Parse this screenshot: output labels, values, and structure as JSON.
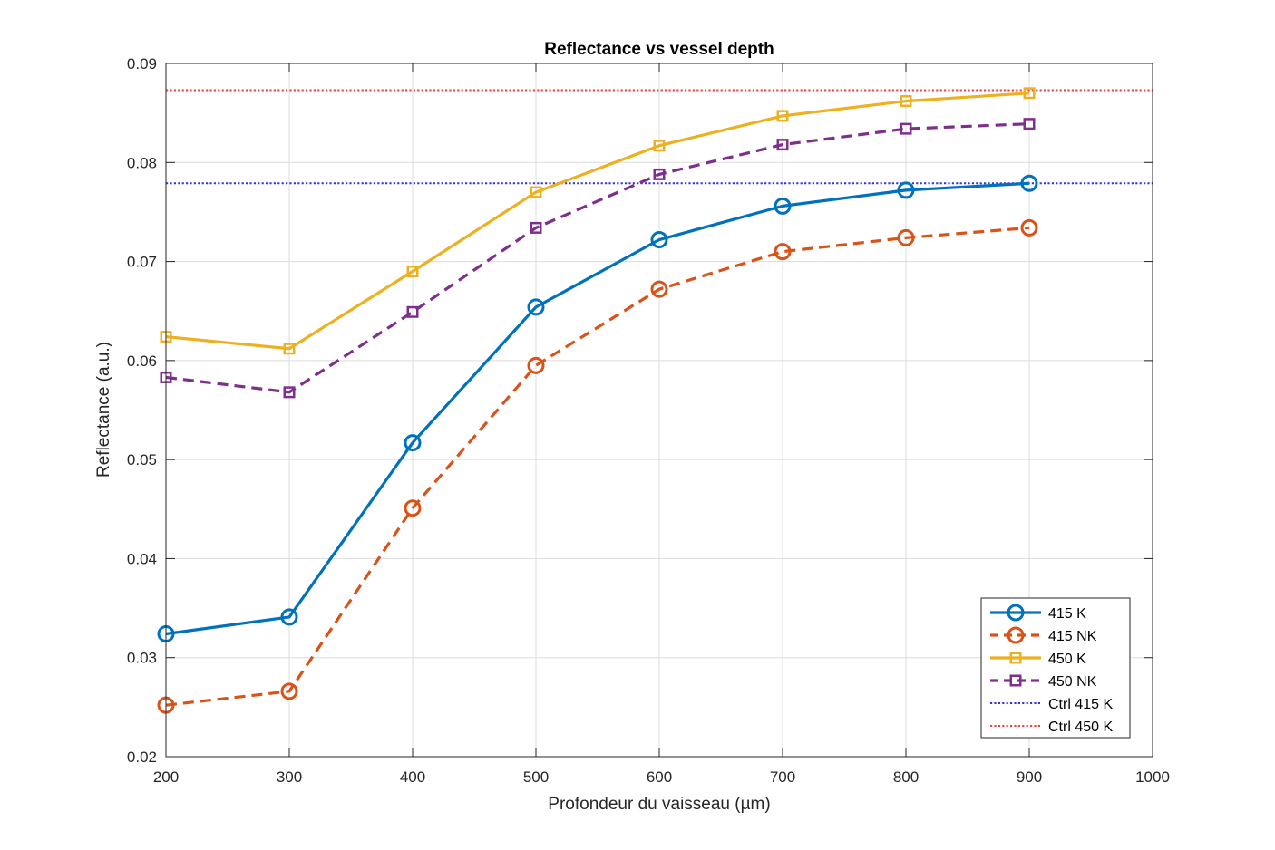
{
  "chart_data": {
    "type": "line",
    "title": "Reflectance vs vessel depth",
    "xlabel": "Profondeur du vaisseau (µm)",
    "ylabel": "Reflectance (a.u.)",
    "xlim": [
      200,
      1000
    ],
    "ylim": [
      0.02,
      0.09
    ],
    "xticks": [
      200,
      300,
      400,
      500,
      600,
      700,
      800,
      900,
      1000
    ],
    "yticks": [
      0.02,
      0.03,
      0.04,
      0.05,
      0.06,
      0.07,
      0.08,
      0.09
    ],
    "ytick_labels": [
      "0.02",
      "0.03",
      "0.04",
      "0.05",
      "0.06",
      "0.07",
      "0.08",
      "0.09"
    ],
    "grid": true,
    "legend_position": "bottom-right",
    "x": [
      200,
      300,
      400,
      500,
      600,
      700,
      800,
      900
    ],
    "series": [
      {
        "name": "415 K",
        "color": "#0072BD",
        "line": "solid",
        "marker": "circle",
        "values": [
          0.0324,
          0.0341,
          0.0517,
          0.0654,
          0.0722,
          0.0756,
          0.0772,
          0.0779
        ]
      },
      {
        "name": "415 NK",
        "color": "#D95319",
        "line": "dashed",
        "marker": "circle",
        "values": [
          0.0252,
          0.0266,
          0.0451,
          0.0595,
          0.0672,
          0.071,
          0.0724,
          0.0734
        ]
      },
      {
        "name": "450 K",
        "color": "#EDB120",
        "line": "solid",
        "marker": "square",
        "values": [
          0.0624,
          0.0612,
          0.069,
          0.077,
          0.0817,
          0.0847,
          0.0862,
          0.087
        ]
      },
      {
        "name": "450 NK",
        "color": "#7E2F8E",
        "line": "dashed",
        "marker": "square",
        "values": [
          0.0583,
          0.0568,
          0.0649,
          0.0734,
          0.0788,
          0.0818,
          0.0834,
          0.0839
        ]
      }
    ],
    "reference_lines": [
      {
        "name": "Ctrl 415 K",
        "color": "#3333E0",
        "line": "dotted",
        "y": 0.0779
      },
      {
        "name": "Ctrl 450 K",
        "color": "#F04040",
        "line": "dotted",
        "y": 0.0873
      }
    ]
  }
}
